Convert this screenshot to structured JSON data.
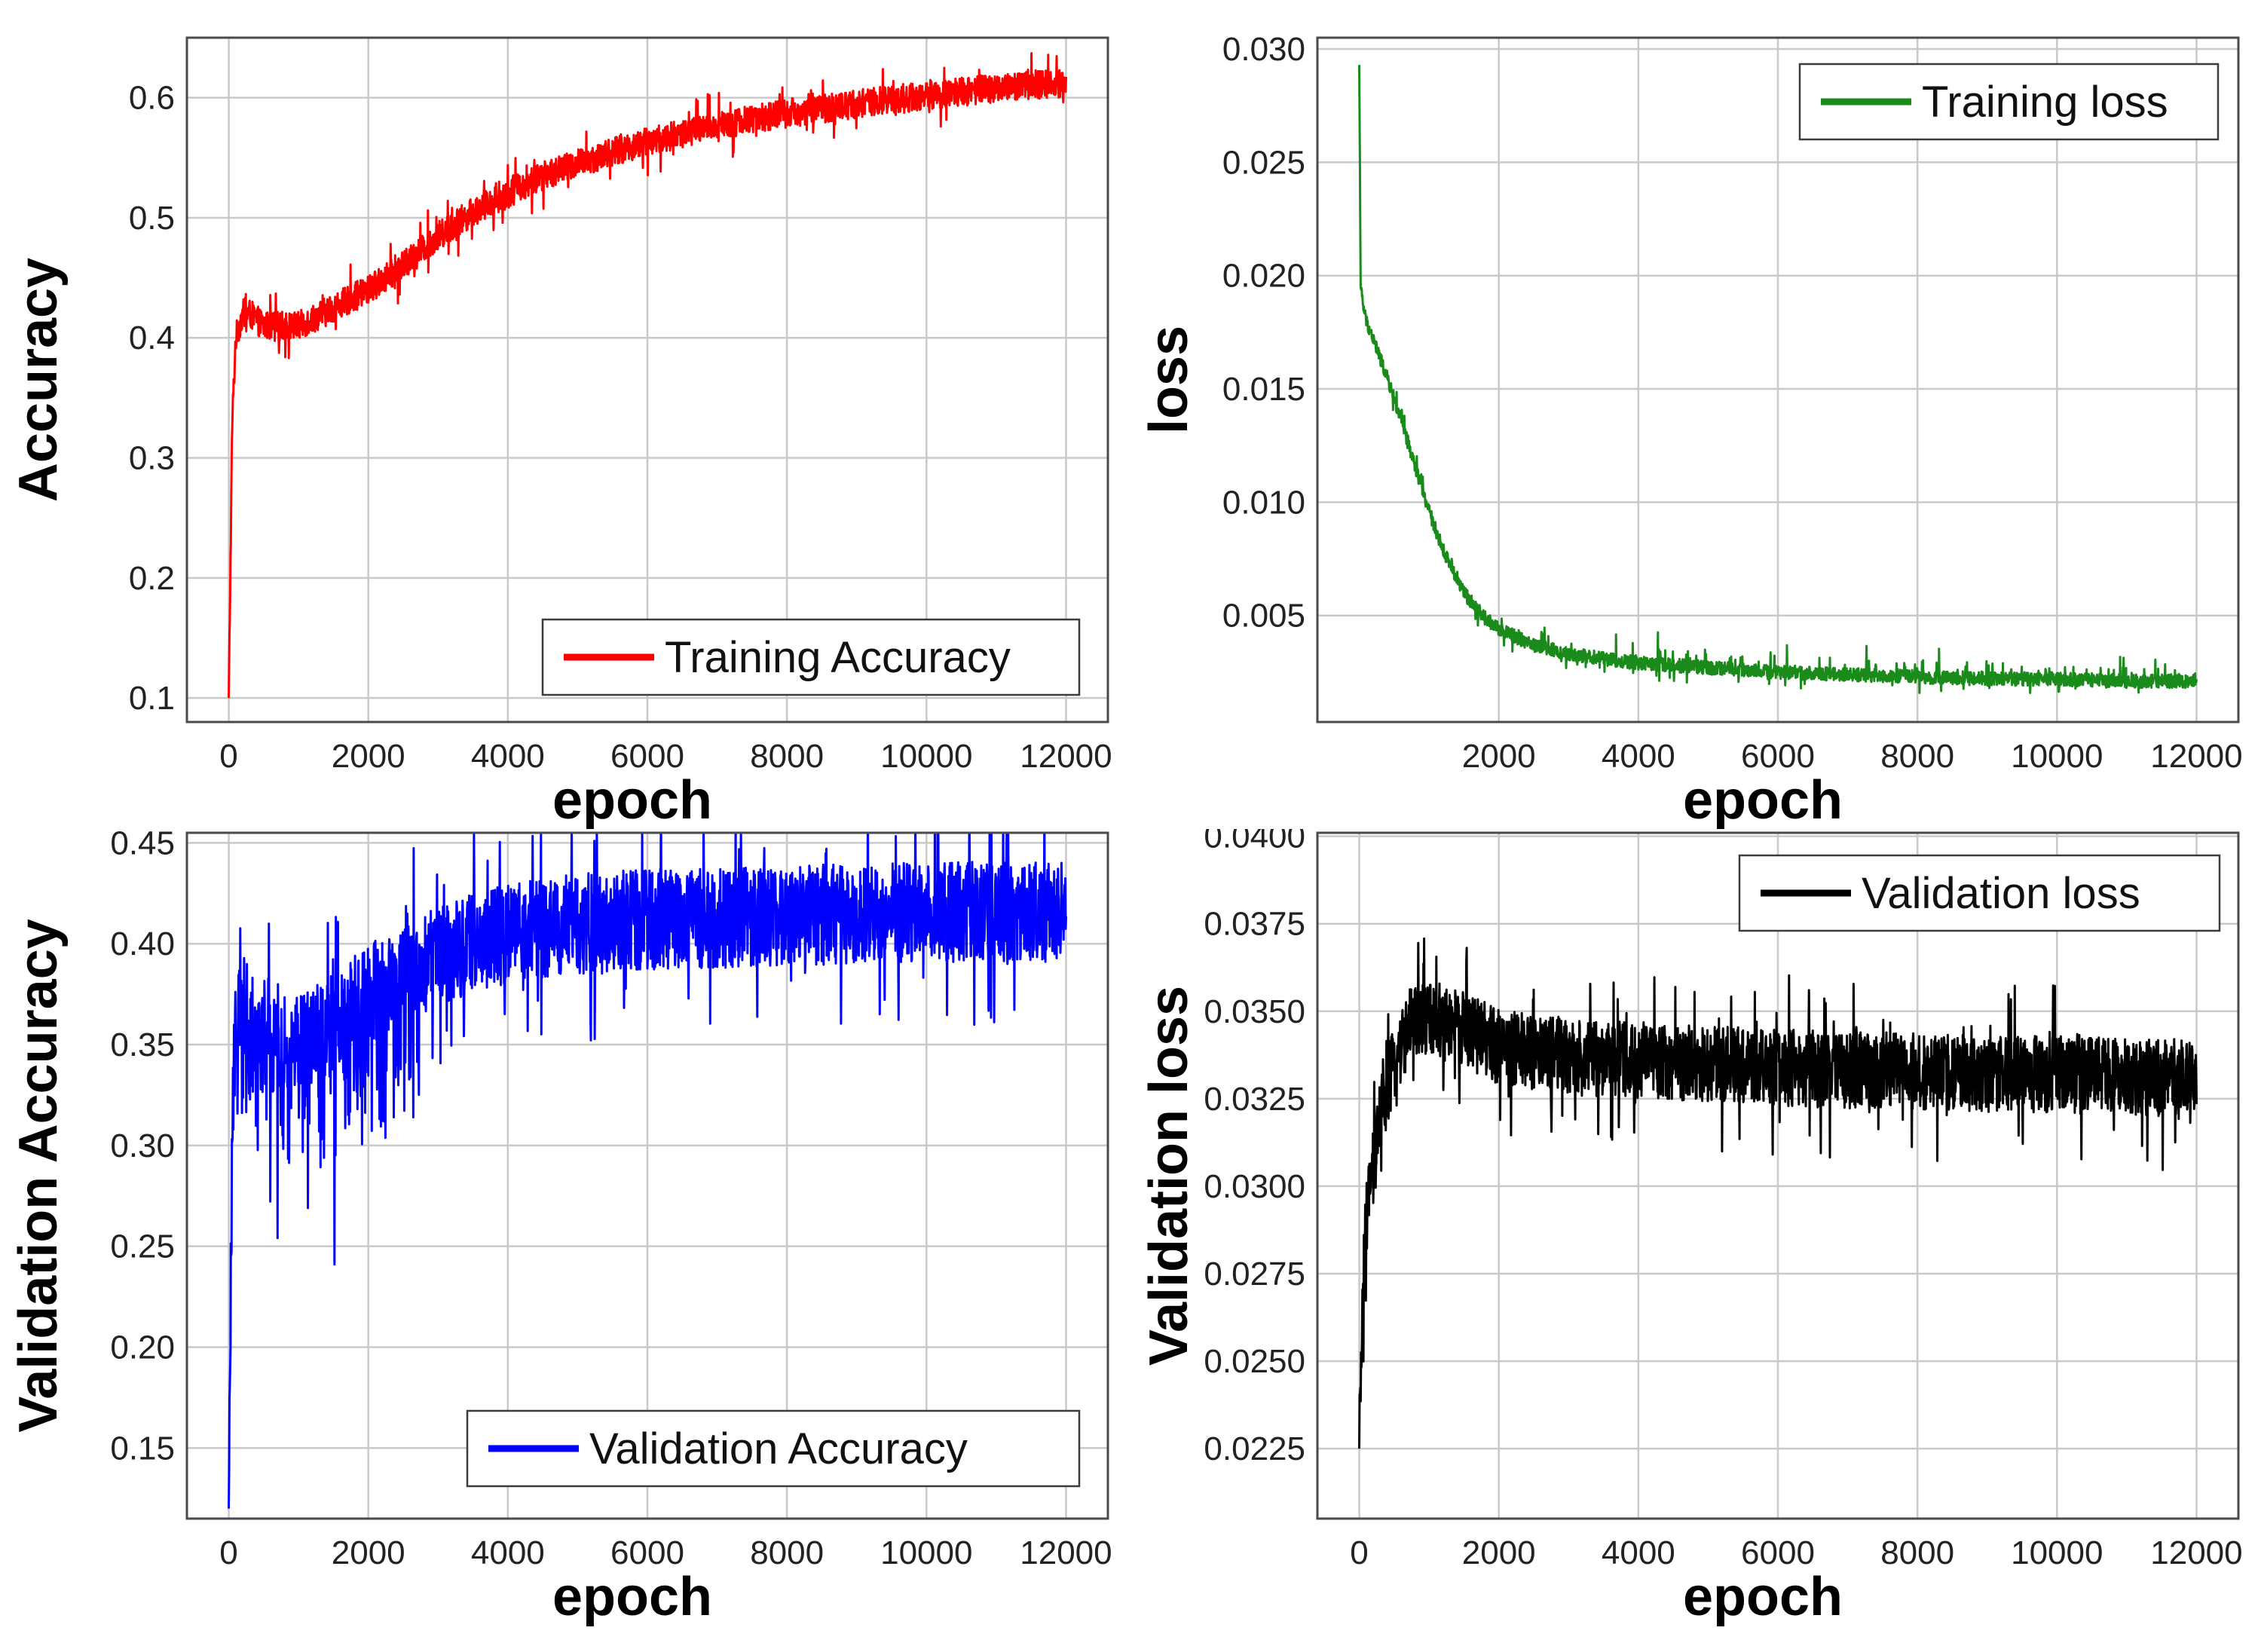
{
  "chart_data": [
    {
      "id": "training-accuracy",
      "type": "line",
      "title": "",
      "xlabel": "epoch",
      "ylabel": "Accuracy",
      "xlim": [
        -600,
        12600
      ],
      "ylim": [
        0.08,
        0.65
      ],
      "xticks": [
        0,
        2000,
        4000,
        6000,
        8000,
        10000,
        12000
      ],
      "xtick_labels": [
        "0",
        "2000",
        "4000",
        "6000",
        "8000",
        "10000",
        "12000"
      ],
      "yticks": [
        0.1,
        0.2,
        0.3,
        0.4,
        0.5,
        0.6
      ],
      "ytick_labels": [
        "0.1",
        "0.2",
        "0.3",
        "0.4",
        "0.5",
        "0.6"
      ],
      "grid": true,
      "legend": "bottom-right",
      "series": [
        {
          "name": "Training Accuracy",
          "color": "#ff0000",
          "x": [
            0,
            50,
            100,
            200,
            300,
            500,
            1000,
            1500,
            2000,
            2500,
            3000,
            3500,
            4000,
            4500,
            5000,
            5500,
            6000,
            6500,
            7000,
            7500,
            8000,
            8500,
            9000,
            9500,
            10000,
            10500,
            11000,
            11500,
            12000
          ],
          "values": [
            0.1,
            0.33,
            0.4,
            0.42,
            0.42,
            0.41,
            0.41,
            0.425,
            0.44,
            0.46,
            0.485,
            0.505,
            0.52,
            0.535,
            0.545,
            0.555,
            0.563,
            0.57,
            0.577,
            0.582,
            0.587,
            0.591,
            0.595,
            0.598,
            0.602,
            0.605,
            0.608,
            0.611,
            0.612
          ],
          "noise": 0.012
        }
      ]
    },
    {
      "id": "training-loss",
      "type": "line",
      "title": "",
      "xlabel": "epoch",
      "ylabel": "loss",
      "xlim": [
        -600,
        12600
      ],
      "ylim": [
        0.0003,
        0.0305
      ],
      "xticks": [
        2000,
        4000,
        6000,
        8000,
        10000,
        12000
      ],
      "xtick_labels": [
        "2000",
        "4000",
        "6000",
        "8000",
        "10000",
        "12000"
      ],
      "yticks": [
        0.005,
        0.01,
        0.015,
        0.02,
        0.025,
        0.03
      ],
      "ytick_labels": [
        "0.005",
        "0.010",
        "0.015",
        "0.020",
        "0.025",
        "0.030"
      ],
      "grid": true,
      "legend": "top-right",
      "series": [
        {
          "name": "Training loss",
          "color": "#1a8a1a",
          "x": [
            0,
            20,
            60,
            100,
            200,
            400,
            600,
            800,
            1000,
            1200,
            1500,
            1800,
            2000,
            2500,
            3000,
            3500,
            4000,
            5000,
            6000,
            7000,
            8000,
            9000,
            10000,
            11000,
            12000
          ],
          "values": [
            0.0293,
            0.0195,
            0.0186,
            0.018,
            0.0172,
            0.0155,
            0.0136,
            0.0116,
            0.0096,
            0.0079,
            0.006,
            0.0049,
            0.0044,
            0.0037,
            0.0033,
            0.0031,
            0.0029,
            0.0027,
            0.0025,
            0.0024,
            0.0023,
            0.0022,
            0.0022,
            0.0021,
            0.0021
          ],
          "noise": 0.0003
        }
      ]
    },
    {
      "id": "validation-accuracy",
      "type": "line",
      "title": "",
      "xlabel": "epoch",
      "ylabel": "Validation Accuracy",
      "xlim": [
        -600,
        12600
      ],
      "ylim": [
        0.115,
        0.455
      ],
      "xticks": [
        0,
        2000,
        4000,
        6000,
        8000,
        10000,
        12000
      ],
      "xtick_labels": [
        "0",
        "2000",
        "4000",
        "6000",
        "8000",
        "10000",
        "12000"
      ],
      "yticks": [
        0.15,
        0.2,
        0.25,
        0.3,
        0.35,
        0.4,
        0.45
      ],
      "ytick_labels": [
        "0.15",
        "0.20",
        "0.25",
        "0.30",
        "0.35",
        "0.40",
        "0.45"
      ],
      "grid": true,
      "legend": "bottom-right",
      "series": [
        {
          "name": "Validation Accuracy",
          "color": "#0000ff",
          "x": [
            0,
            50,
            100,
            200,
            500,
            1000,
            1500,
            2000,
            2500,
            3000,
            3500,
            4000,
            5000,
            6000,
            7000,
            8000,
            9000,
            10000,
            11000,
            12000
          ],
          "values": [
            0.12,
            0.3,
            0.37,
            0.37,
            0.35,
            0.35,
            0.36,
            0.375,
            0.385,
            0.395,
            0.4,
            0.405,
            0.41,
            0.412,
            0.413,
            0.414,
            0.415,
            0.415,
            0.416,
            0.416
          ],
          "noise": 0.025
        }
      ]
    },
    {
      "id": "validation-loss",
      "type": "line",
      "title": "",
      "xlabel": "epoch",
      "ylabel": "Validation loss",
      "xlim": [
        -600,
        12600
      ],
      "ylim": [
        0.0205,
        0.0401
      ],
      "xticks": [
        0,
        2000,
        4000,
        6000,
        8000,
        10000,
        12000
      ],
      "xtick_labels": [
        "0",
        "2000",
        "4000",
        "6000",
        "8000",
        "10000",
        "12000"
      ],
      "yticks": [
        0.0225,
        0.025,
        0.0275,
        0.03,
        0.0325,
        0.035,
        0.0375,
        0.04
      ],
      "ytick_labels": [
        "0.0225",
        "0.0250",
        "0.0275",
        "0.0300",
        "0.0325",
        "0.0350",
        "0.0375",
        "0.0400"
      ],
      "grid": true,
      "legend": "top-right",
      "series": [
        {
          "name": "Validation loss",
          "color": "#000000",
          "x": [
            0,
            50,
            100,
            200,
            300,
            500,
            700,
            1000,
            1500,
            2000,
            3000,
            4000,
            5000,
            6000,
            7000,
            8000,
            9000,
            10000,
            11000,
            12000
          ],
          "values": [
            0.0225,
            0.027,
            0.029,
            0.0305,
            0.032,
            0.0335,
            0.0345,
            0.0348,
            0.0345,
            0.034,
            0.0337,
            0.0336,
            0.0335,
            0.0334,
            0.0333,
            0.0333,
            0.0332,
            0.0332,
            0.0331,
            0.0331
          ],
          "noise": 0.0011
        }
      ]
    }
  ]
}
